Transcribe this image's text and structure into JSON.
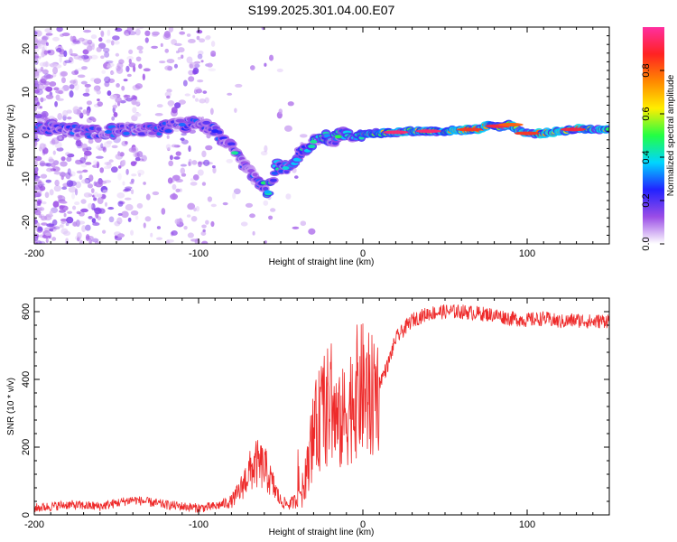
{
  "figure_title": "S199.2025.301.04.00.E07",
  "colors": {
    "snr_line": "#ee2a2a",
    "axes": "#000000",
    "colormap": [
      "#ffffff",
      "#9b4de6",
      "#2222ff",
      "#00d5ff",
      "#22ff44",
      "#ffee00",
      "#ff8800",
      "#ff2222",
      "#ff2fa0"
    ]
  },
  "chart_data": [
    {
      "type": "heatmap",
      "title": "",
      "xlabel": "Height of straight line (km)",
      "ylabel": "Frequency (Hz)",
      "xlim": [
        -200,
        150
      ],
      "ylim": [
        -25,
        25
      ],
      "x_ticks": [
        -200,
        -100,
        0,
        100
      ],
      "y_ticks": [
        -20,
        -10,
        0,
        10,
        20
      ],
      "ridge": {
        "x": [
          -200,
          -180,
          -160,
          -145,
          -130,
          -110,
          -100,
          -90,
          -80,
          -72,
          -64,
          -58,
          -52,
          -47,
          -40,
          -32,
          -25,
          -18,
          -12,
          -6,
          0,
          10,
          30,
          50,
          70,
          78,
          84,
          90,
          96,
          100,
          110,
          130,
          150
        ],
        "y": [
          2,
          1.5,
          0.5,
          1.5,
          1,
          2.5,
          3,
          1,
          -3,
          -7,
          -10,
          -13,
          -7,
          -7.5,
          -5,
          -2,
          0,
          -1,
          0.5,
          -0.5,
          0.5,
          0.5,
          1,
          1,
          1.5,
          2.5,
          2,
          2.5,
          1,
          0.5,
          0.5,
          1.5,
          1.5
        ]
      },
      "colorbar": {
        "label": "Normalized spectral amplitude",
        "range": [
          0,
          1
        ],
        "ticks": [
          "0.0",
          "0.2",
          "0.4",
          "0.6",
          "0.8"
        ]
      }
    },
    {
      "type": "line",
      "title": "",
      "xlabel": "Height of straight line (km)",
      "ylabel": "SNR (10 * v/v)",
      "xlim": [
        -200,
        150
      ],
      "ylim": [
        0,
        640
      ],
      "x_ticks": [
        -200,
        -100,
        0,
        100
      ],
      "y_ticks": [
        0,
        200,
        400,
        600
      ],
      "series": [
        {
          "name": "SNR",
          "x": [
            -200,
            -180,
            -160,
            -150,
            -140,
            -120,
            -100,
            -90,
            -80,
            -75,
            -70,
            -65,
            -60,
            -55,
            -50,
            -45,
            -40,
            -35,
            -30,
            -25,
            -20,
            -15,
            -10,
            -5,
            0,
            5,
            10,
            15,
            20,
            30,
            40,
            50,
            60,
            70,
            80,
            90,
            100,
            110,
            120,
            130,
            140,
            150
          ],
          "y": [
            20,
            30,
            25,
            35,
            45,
            30,
            20,
            25,
            40,
            70,
            120,
            150,
            140,
            90,
            40,
            30,
            45,
            100,
            240,
            300,
            330,
            260,
            300,
            360,
            370,
            340,
            390,
            440,
            520,
            575,
            595,
            600,
            600,
            595,
            590,
            580,
            575,
            580,
            570,
            575,
            570,
            575
          ]
        }
      ]
    }
  ]
}
